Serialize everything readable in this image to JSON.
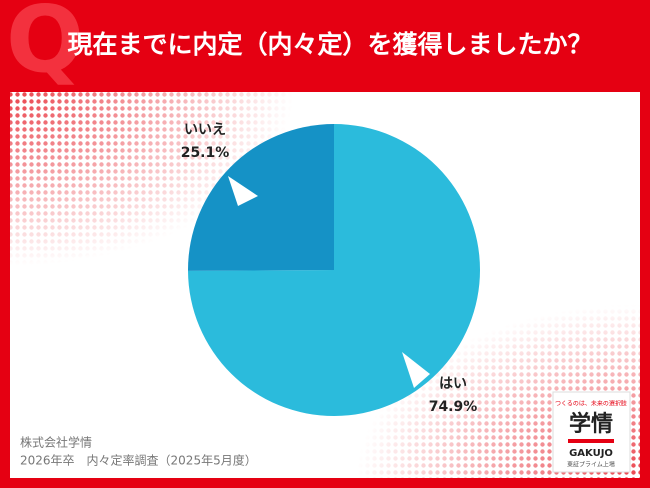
{
  "badge": "Q",
  "chart_data": {
    "type": "pie",
    "title": "現在までに内定（内々定）を獲得しましたか？",
    "categories": [
      "はい",
      "いいえ"
    ],
    "values": [
      74.9,
      25.1
    ],
    "value_labels": [
      "74.9%",
      "25.1%"
    ],
    "colors": [
      "#2bbbdc",
      "#1592c6"
    ]
  },
  "footer": {
    "company": "株式会社学情",
    "survey": "2026年卒　内々定率調査（2025年5月度）"
  },
  "logo": {
    "tagline": "つくるのは、未来の選択肢",
    "name": "学情",
    "roman": "GAKUJO",
    "listing": "東証プライム上場"
  }
}
